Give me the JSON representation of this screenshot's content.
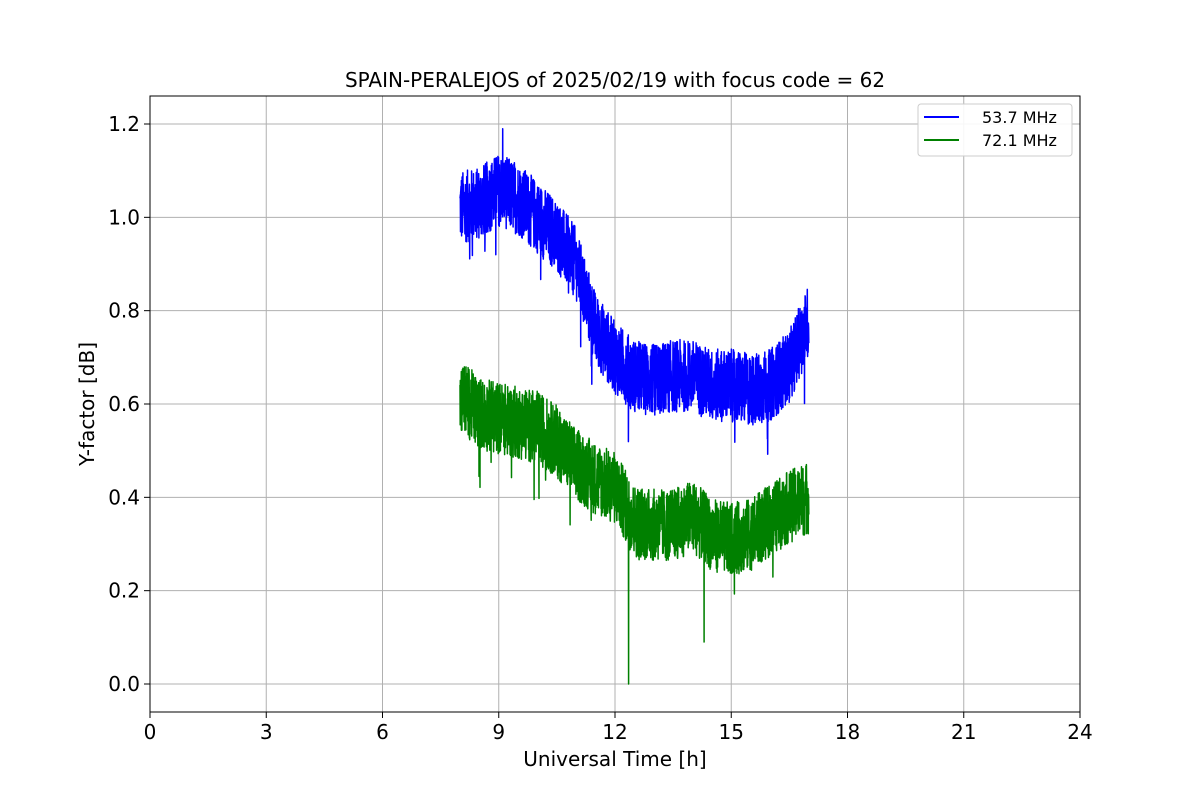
{
  "chart_data": {
    "type": "line",
    "title": "SPAIN-PERALEJOS of 2025/02/19 with focus code = 62",
    "xlabel": "Universal Time [h]",
    "ylabel": "Y-factor [dB]",
    "xlim": [
      0,
      24
    ],
    "ylim": [
      -0.06,
      1.26
    ],
    "xticks": [
      0,
      3,
      6,
      9,
      12,
      15,
      18,
      21,
      24
    ],
    "xtick_labels": [
      "0",
      "3",
      "6",
      "9",
      "12",
      "15",
      "18",
      "21",
      "24"
    ],
    "yticks": [
      0.0,
      0.2,
      0.4,
      0.6,
      0.8,
      1.0,
      1.2
    ],
    "ytick_labels": [
      "0.0",
      "0.2",
      "0.4",
      "0.6",
      "0.8",
      "1.0",
      "1.2"
    ],
    "grid": true,
    "legend_position": "top-right",
    "series": [
      {
        "name": "53.7 MHz",
        "color": "#0000ff",
        "x": [
          8.0,
          8.5,
          9.0,
          9.5,
          10.0,
          10.5,
          11.0,
          11.5,
          12.0,
          12.5,
          13.0,
          13.5,
          14.0,
          14.5,
          15.0,
          15.5,
          16.0,
          16.5,
          17.0
        ],
        "y": [
          1.02,
          1.03,
          1.06,
          1.04,
          1.0,
          0.96,
          0.9,
          0.76,
          0.7,
          0.66,
          0.65,
          0.66,
          0.66,
          0.64,
          0.64,
          0.63,
          0.64,
          0.68,
          0.78
        ],
        "noise": 0.06,
        "max": 1.19,
        "min": 0.47
      },
      {
        "name": "72.1 MHz",
        "color": "#008000",
        "x": [
          8.0,
          8.5,
          9.0,
          9.5,
          10.0,
          10.5,
          11.0,
          11.5,
          12.0,
          12.5,
          13.0,
          13.5,
          14.0,
          14.5,
          15.0,
          15.5,
          16.0,
          16.5,
          17.0
        ],
        "y": [
          0.62,
          0.58,
          0.57,
          0.56,
          0.55,
          0.52,
          0.47,
          0.44,
          0.42,
          0.35,
          0.34,
          0.34,
          0.36,
          0.32,
          0.31,
          0.32,
          0.35,
          0.38,
          0.4
        ],
        "noise": 0.06,
        "max": 0.73,
        "min": 0.0
      }
    ]
  }
}
